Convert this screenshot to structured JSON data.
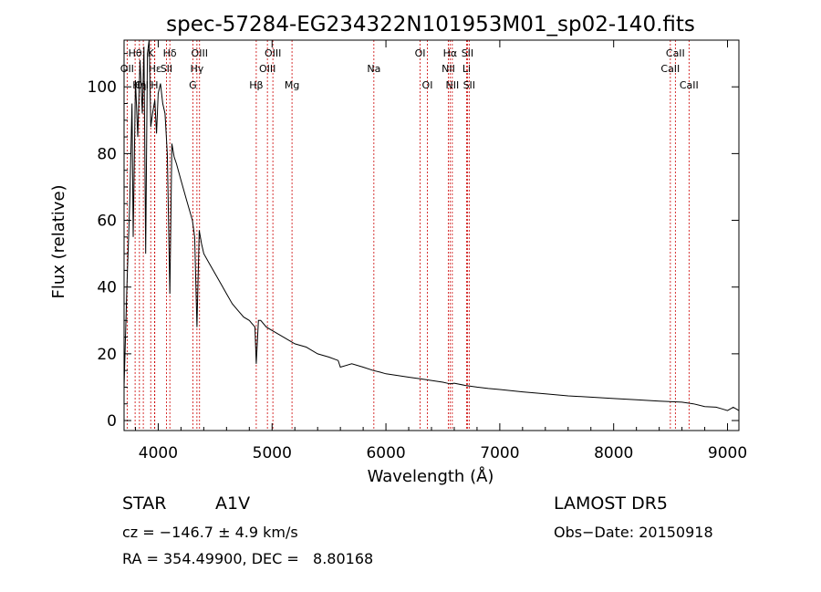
{
  "chart_data": {
    "type": "line",
    "title": "spec-57284-EG234322N101953M01_sp02-140.fits",
    "xlabel": "Wavelength (Å)",
    "ylabel": "Flux (relative)",
    "xlim": [
      3700,
      9100
    ],
    "ylim": [
      -3,
      114
    ],
    "x_ticks": [
      4000,
      5000,
      6000,
      7000,
      8000,
      9000
    ],
    "y_ticks": [
      0,
      20,
      40,
      60,
      80,
      100
    ],
    "grid": false,
    "series": [
      {
        "x": [
          3700,
          3725,
          3750,
          3770,
          3780,
          3800,
          3820,
          3840,
          3860,
          3875,
          3890,
          3905,
          3920,
          3935,
          3950,
          3970,
          3985,
          4000,
          4020,
          4040,
          4060,
          4080,
          4102,
          4120,
          4140,
          4160,
          4200,
          4250,
          4300,
          4320,
          4340,
          4360,
          4380,
          4400,
          4450,
          4500,
          4550,
          4600,
          4650,
          4700,
          4750,
          4800,
          4850,
          4861,
          4880,
          4900,
          4950,
          5000,
          5100,
          5200,
          5300,
          5400,
          5500,
          5580,
          5600,
          5700,
          5800,
          5890,
          5950,
          6000,
          6100,
          6200,
          6300,
          6400,
          6500,
          6563,
          6600,
          6700,
          6800,
          6900,
          7000,
          7200,
          7400,
          7600,
          7800,
          8000,
          8200,
          8400,
          8600,
          8700,
          8800,
          8900,
          8950,
          9000,
          9050,
          9100
        ],
        "y": [
          10,
          40,
          65,
          95,
          55,
          102,
          85,
          108,
          92,
          112,
          50,
          110,
          120,
          88,
          92,
          96,
          86,
          98,
          101,
          95,
          92,
          80,
          38,
          83,
          79,
          77,
          72,
          66,
          60,
          55,
          28,
          57,
          53,
          50,
          47,
          44,
          41,
          38,
          35,
          33,
          31,
          30,
          28,
          17,
          30,
          30,
          28,
          27,
          25,
          23,
          22,
          20,
          19,
          18,
          16,
          17,
          16,
          15,
          14.5,
          14,
          13.5,
          13,
          12.5,
          12,
          11.5,
          11,
          11.2,
          10.5,
          10,
          9.6,
          9.3,
          8.6,
          8,
          7.4,
          7,
          6.6,
          6.2,
          5.8,
          5.5,
          5,
          4.2,
          4,
          3.5,
          3,
          4,
          3
        ]
      }
    ],
    "lines": [
      {
        "label": "Hθ",
        "x": 3797,
        "row": 1
      },
      {
        "label": "OII",
        "x": 3727,
        "row": 2
      },
      {
        "label": "OIII",
        "x": 3869,
        "row": 3
      },
      {
        "label": "Hη",
        "x": 3835,
        "row": 3
      },
      {
        "label": "K",
        "x": 3934,
        "row": 1
      },
      {
        "label": "Hε",
        "x": 3970,
        "row": 2
      },
      {
        "label": "H",
        "x": 3968,
        "row": 3
      },
      {
        "label": "Hδ",
        "x": 4102,
        "row": 1
      },
      {
        "label": "SII",
        "x": 4072,
        "row": 2
      },
      {
        "label": "OIII",
        "x": 4363,
        "row": 1
      },
      {
        "label": "Hγ",
        "x": 4340,
        "row": 2
      },
      {
        "label": "G",
        "x": 4304,
        "row": 3
      },
      {
        "label": "Hβ",
        "x": 4861,
        "row": 3
      },
      {
        "label": "OIII",
        "x": 5007,
        "row": 1
      },
      {
        "label": "OIII",
        "x": 4959,
        "row": 2
      },
      {
        "label": "Mg",
        "x": 5175,
        "row": 3
      },
      {
        "label": "Na",
        "x": 5894,
        "row": 2
      },
      {
        "label": "OI",
        "x": 6300,
        "row": 1
      },
      {
        "label": "OI",
        "x": 6364,
        "row": 3
      },
      {
        "label": "Hα",
        "x": 6563,
        "row": 1
      },
      {
        "label": "NII",
        "x": 6548,
        "row": 2
      },
      {
        "label": "NII",
        "x": 6583,
        "row": 3
      },
      {
        "label": "SII",
        "x": 6716,
        "row": 1
      },
      {
        "label": "Li",
        "x": 6708,
        "row": 2
      },
      {
        "label": "SII",
        "x": 6731,
        "row": 3
      },
      {
        "label": "CaII",
        "x": 8542,
        "row": 1
      },
      {
        "label": "CaII",
        "x": 8498,
        "row": 2
      },
      {
        "label": "CaII",
        "x": 8662,
        "row": 3
      }
    ]
  },
  "info": {
    "class": "STAR",
    "subclass": "A1V",
    "survey": "LAMOST DR5",
    "cz": "cz = −146.7 ± 4.9 km/s",
    "obs_date": "Obs−Date: 20150918",
    "radec": "RA = 354.49900, DEC =   8.80168"
  },
  "colors": {
    "spectrum": "#000000",
    "line_markers": "#cc0000",
    "axes": "#000000"
  }
}
